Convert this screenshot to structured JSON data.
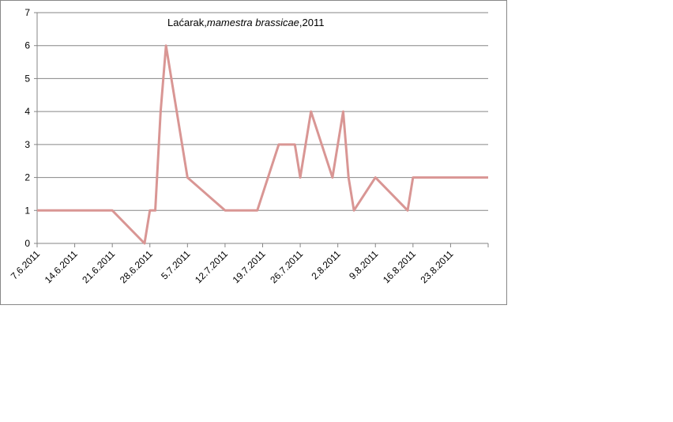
{
  "chart_data": {
    "type": "line",
    "title": [
      "Laćarak,",
      "mamestra brassicae",
      ",2011"
    ],
    "x": [
      "2011-06-07",
      "2011-06-21",
      "2011-06-27",
      "2011-06-28",
      "2011-06-29",
      "2011-06-30",
      "2011-07-01",
      "2011-07-05",
      "2011-07-12",
      "2011-07-18",
      "2011-07-22",
      "2011-07-25",
      "2011-07-26",
      "2011-07-28",
      "2011-08-01",
      "2011-08-03",
      "2011-08-04",
      "2011-08-05",
      "2011-08-09",
      "2011-08-15",
      "2011-08-16",
      "2011-08-30"
    ],
    "series": [
      {
        "color": "#d99694",
        "values": [
          1,
          1,
          0,
          1,
          1,
          4,
          6,
          2,
          1,
          1,
          3,
          3,
          2,
          4,
          2,
          4,
          2,
          1,
          2,
          1,
          2,
          2
        ]
      }
    ],
    "xlim": [
      "2011-06-07",
      "2011-08-30"
    ],
    "xticks": [
      {
        "value": "2011-06-07",
        "label": "7.6.2011"
      },
      {
        "value": "2011-06-14",
        "label": "14.6.2011"
      },
      {
        "value": "2011-06-21",
        "label": "21.6.2011"
      },
      {
        "value": "2011-06-28",
        "label": "28.6.2011"
      },
      {
        "value": "2011-07-05",
        "label": "5.7.2011"
      },
      {
        "value": "2011-07-12",
        "label": "12.7.2011"
      },
      {
        "value": "2011-07-19",
        "label": "19.7.2011"
      },
      {
        "value": "2011-07-26",
        "label": "26.7.2011"
      },
      {
        "value": "2011-08-02",
        "label": "2.8.2011"
      },
      {
        "value": "2011-08-09",
        "label": "9.8.2011"
      },
      {
        "value": "2011-08-16",
        "label": "16.8.2011"
      },
      {
        "value": "2011-08-23",
        "label": "23.8.2011"
      }
    ],
    "ylim": [
      0,
      7
    ],
    "yticks": [
      0,
      1,
      2,
      3,
      4,
      5,
      6,
      7
    ],
    "grid": true
  }
}
